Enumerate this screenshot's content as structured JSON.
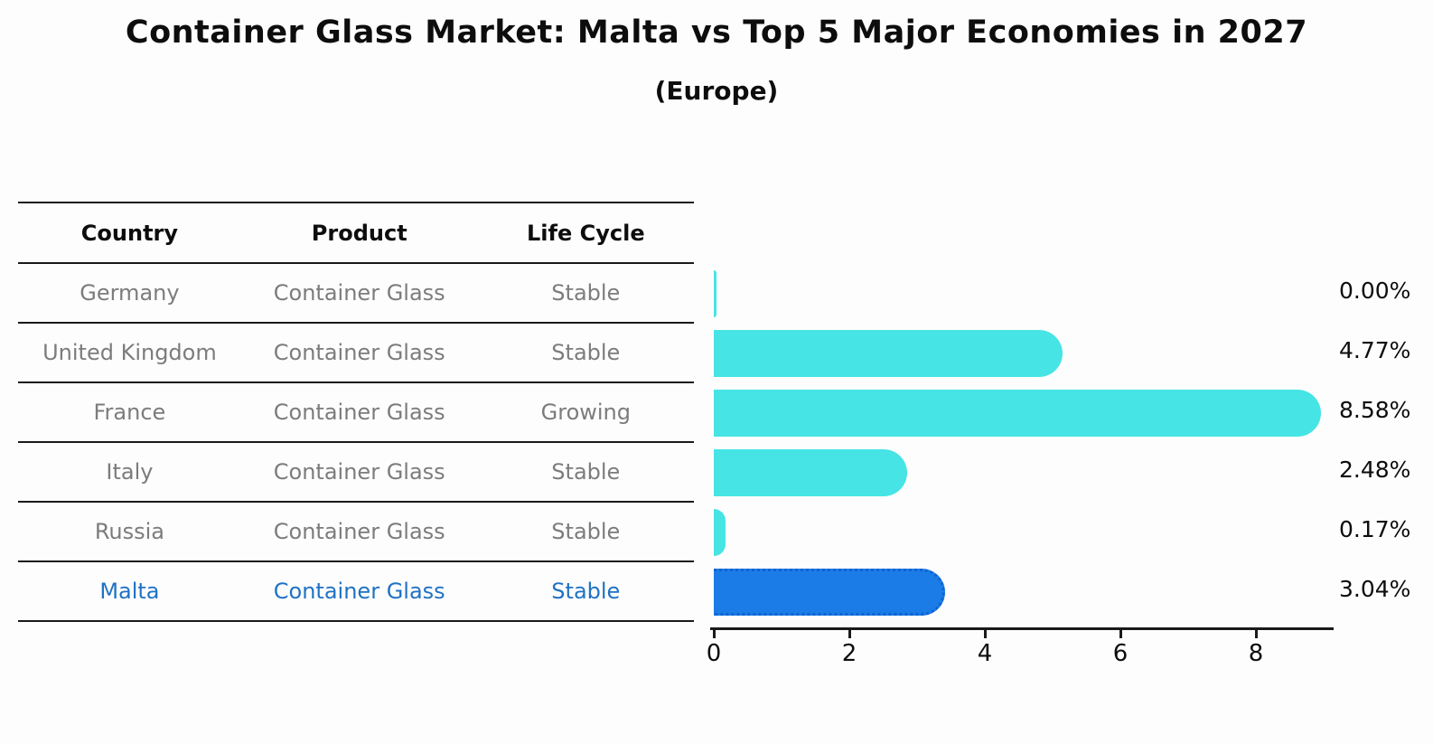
{
  "title": "Container Glass Market: Malta vs Top 5 Major Economies in 2027",
  "subtitle": "(Europe)",
  "table": {
    "headers": [
      "Country",
      "Product",
      "Life Cycle"
    ],
    "rows": [
      {
        "country": "Germany",
        "product": "Container Glass",
        "life_cycle": "Stable"
      },
      {
        "country": "United Kingdom",
        "product": "Container Glass",
        "life_cycle": "Stable"
      },
      {
        "country": "France",
        "product": "Container Glass",
        "life_cycle": "Growing"
      },
      {
        "country": "Italy",
        "product": "Container Glass",
        "life_cycle": "Stable"
      },
      {
        "country": "Russia",
        "product": "Container Glass",
        "life_cycle": "Stable"
      },
      {
        "country": "Malta",
        "product": "Container Glass",
        "life_cycle": "Stable"
      }
    ]
  },
  "chart_data": {
    "type": "bar",
    "orientation": "horizontal",
    "categories": [
      "Germany",
      "United Kingdom",
      "France",
      "Italy",
      "Russia",
      "Malta"
    ],
    "values": [
      0.0,
      4.77,
      8.58,
      2.48,
      0.17,
      3.04
    ],
    "value_labels": [
      "0.00%",
      "4.77%",
      "8.58%",
      "2.48%",
      "0.17%",
      "3.04%"
    ],
    "xlabel": "",
    "ylabel": "",
    "xticks": [
      0,
      2,
      4,
      6,
      8
    ],
    "xlim": [
      0,
      9.1
    ],
    "grid": false,
    "legend": "none",
    "bar_color": "#46e4e4",
    "highlight_index": 5,
    "highlight_color": "#1b7ce8",
    "highlight_text_color": "#1f72c4"
  }
}
